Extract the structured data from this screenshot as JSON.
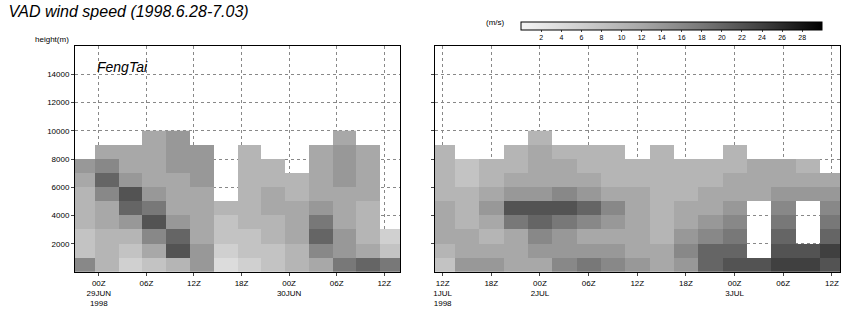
{
  "chart_data": {
    "type": "heatmap",
    "title": "VAD wind speed (1998.6.28-7.03)",
    "y_label": "height(m)",
    "colorbar_label": "(m/s)",
    "cbar_range": [
      0,
      30
    ],
    "cbar_ticks": [
      2,
      4,
      6,
      8,
      10,
      12,
      14,
      16,
      18,
      20,
      22,
      24,
      26,
      28
    ],
    "colors": [
      "#f4f4f4",
      "#d0d0d0",
      "#a8a8a8",
      "#787878",
      "#404040",
      "#000000"
    ],
    "grid": true,
    "ylim": [
      0,
      16000
    ],
    "yticks": [
      2000,
      4000,
      6000,
      8000,
      10000,
      12000,
      14000
    ],
    "panels": [
      {
        "annotation": "FengTai",
        "tick_labels": true,
        "xlim": [
          -3,
          38
        ],
        "xticks": [
          {
            "value": 0,
            "label": "00Z\n29JUN\n1998"
          },
          {
            "value": 6,
            "label": "06Z"
          },
          {
            "value": 12,
            "label": "12Z"
          },
          {
            "value": 18,
            "label": "18Z"
          },
          {
            "value": 24,
            "label": "00Z\n30JUN"
          },
          {
            "value": 30,
            "label": "06Z"
          },
          {
            "value": 36,
            "label": "12Z"
          }
        ],
        "x": [
          -2,
          1,
          4,
          7,
          10,
          13,
          16,
          19,
          22,
          25,
          28,
          31,
          34,
          37
        ],
        "y": [
          500,
          1500,
          2500,
          3500,
          4500,
          5500,
          6500,
          7500,
          8500,
          9500
        ],
        "z": [
          [
            16,
            10,
            6,
            8,
            10,
            14,
            4,
            6,
            8,
            10,
            12,
            18,
            20,
            18
          ],
          [
            8,
            10,
            8,
            12,
            22,
            14,
            6,
            8,
            8,
            10,
            16,
            14,
            12,
            8
          ],
          [
            8,
            10,
            10,
            16,
            20,
            12,
            8,
            8,
            10,
            12,
            20,
            14,
            10,
            6
          ],
          [
            10,
            12,
            14,
            22,
            14,
            12,
            8,
            10,
            10,
            12,
            18,
            12,
            10,
            null
          ],
          [
            10,
            12,
            20,
            18,
            12,
            12,
            10,
            10,
            12,
            12,
            14,
            12,
            10,
            null
          ],
          [
            10,
            16,
            22,
            14,
            12,
            12,
            null,
            10,
            12,
            10,
            12,
            12,
            12,
            null
          ],
          [
            12,
            20,
            14,
            12,
            12,
            14,
            null,
            10,
            10,
            10,
            12,
            14,
            12,
            null
          ],
          [
            14,
            16,
            12,
            12,
            14,
            14,
            null,
            10,
            10,
            null,
            12,
            14,
            12,
            null
          ],
          [
            null,
            12,
            12,
            12,
            14,
            14,
            null,
            10,
            null,
            null,
            12,
            14,
            12,
            null
          ],
          [
            null,
            null,
            null,
            12,
            14,
            null,
            null,
            null,
            null,
            null,
            null,
            12,
            null,
            null
          ]
        ]
      },
      {
        "tick_labels": "x",
        "xlim": [
          -1,
          49
        ],
        "xticks": [
          {
            "value": 0,
            "label": "12Z\n1JUL\n1998"
          },
          {
            "value": 6,
            "label": "18Z"
          },
          {
            "value": 12,
            "label": "00Z\n2JUL"
          },
          {
            "value": 18,
            "label": "06Z"
          },
          {
            "value": 24,
            "label": "12Z"
          },
          {
            "value": 30,
            "label": "18Z"
          },
          {
            "value": 36,
            "label": "00Z\n3JUL"
          },
          {
            "value": 42,
            "label": "06Z"
          },
          {
            "value": 48,
            "label": "12Z"
          }
        ],
        "x": [
          0,
          3,
          6,
          9,
          12,
          15,
          18,
          21,
          24,
          27,
          30,
          33,
          36,
          39,
          42,
          45,
          48
        ],
        "y": [
          500,
          1500,
          2500,
          3500,
          4500,
          5500,
          6500,
          7500,
          8500,
          9500
        ],
        "z": [
          [
            8,
            14,
            14,
            12,
            12,
            16,
            18,
            16,
            14,
            12,
            14,
            20,
            22,
            22,
            24,
            24,
            22
          ],
          [
            10,
            12,
            12,
            12,
            14,
            14,
            14,
            14,
            12,
            12,
            16,
            20,
            20,
            null,
            22,
            22,
            24
          ],
          [
            12,
            12,
            10,
            12,
            16,
            14,
            12,
            12,
            12,
            10,
            14,
            16,
            18,
            null,
            20,
            null,
            20
          ],
          [
            12,
            10,
            12,
            18,
            20,
            18,
            16,
            14,
            12,
            10,
            12,
            14,
            16,
            null,
            18,
            null,
            18
          ],
          [
            12,
            10,
            14,
            22,
            22,
            22,
            20,
            16,
            12,
            10,
            12,
            12,
            14,
            null,
            16,
            null,
            16
          ],
          [
            10,
            10,
            12,
            14,
            14,
            16,
            14,
            12,
            12,
            10,
            10,
            12,
            12,
            12,
            14,
            14,
            14
          ],
          [
            10,
            8,
            10,
            12,
            12,
            12,
            12,
            10,
            10,
            10,
            10,
            10,
            12,
            12,
            12,
            12,
            12
          ],
          [
            10,
            8,
            10,
            10,
            12,
            12,
            10,
            10,
            10,
            10,
            10,
            10,
            10,
            12,
            12,
            10,
            null
          ],
          [
            10,
            null,
            null,
            10,
            12,
            10,
            10,
            10,
            null,
            10,
            null,
            null,
            10,
            null,
            null,
            null,
            null
          ],
          [
            null,
            null,
            null,
            null,
            10,
            null,
            null,
            null,
            null,
            null,
            null,
            null,
            null,
            null,
            null,
            null,
            null
          ]
        ]
      }
    ]
  }
}
